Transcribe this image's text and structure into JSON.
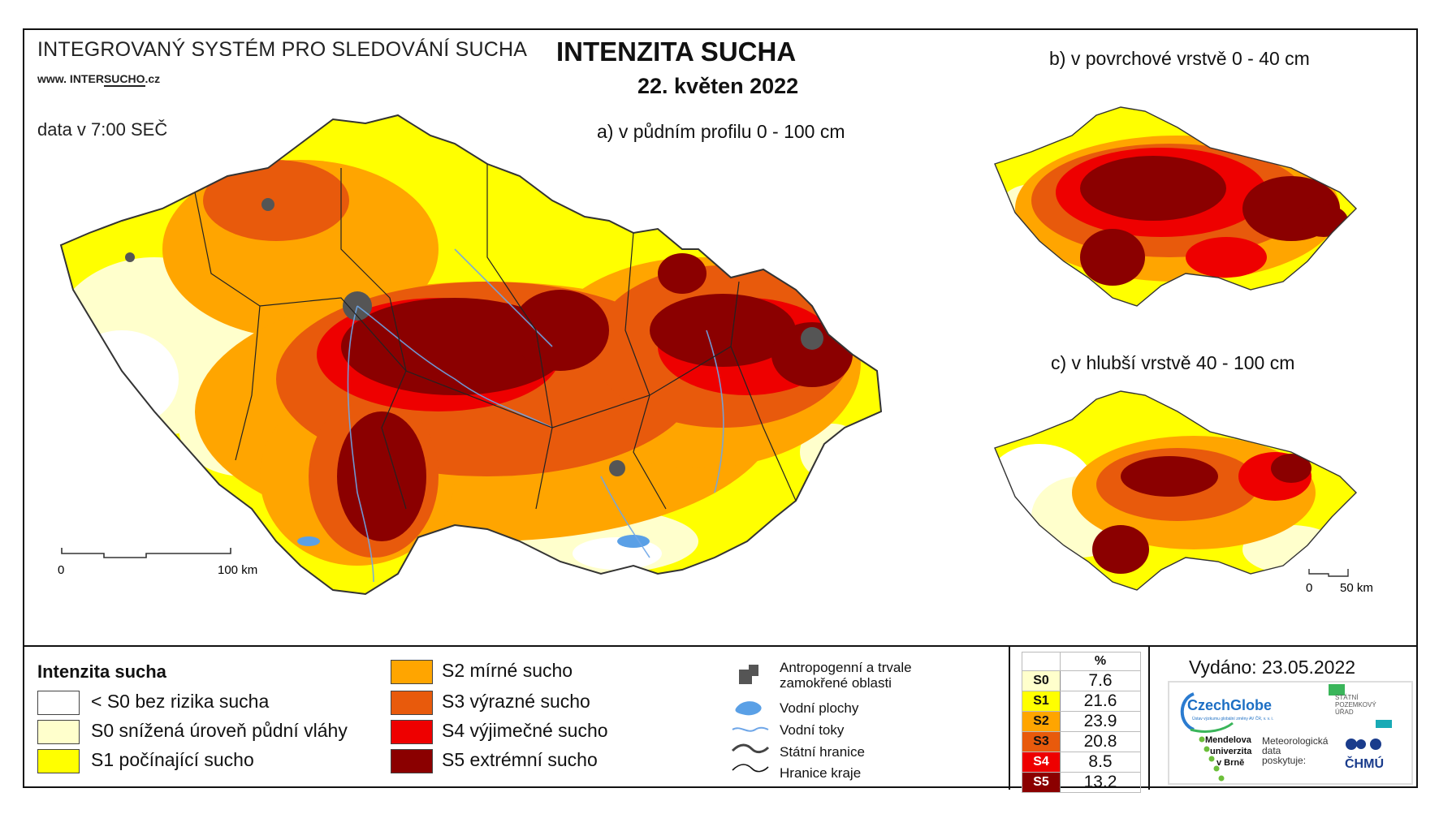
{
  "header": {
    "system_title": "INTEGROVANÝ SYSTÉM PRO SLEDOVÁNÍ SUCHA",
    "website_prefix": "www. INTER",
    "website_underlined": "SUCHO",
    "website_suffix": ".cz",
    "data_time": "data v 7:00 SEČ",
    "main_title": "INTENZITA SUCHA",
    "date": "22. květen 2022"
  },
  "panels": {
    "a_label": "a) v půdním profilu 0 - 100 cm",
    "b_label": "b) v povrchové vrstvě 0 - 40 cm",
    "c_label": "c) v hlubší vrstvě 40 - 100 cm"
  },
  "scale_main": {
    "start": "0",
    "end": "100 km"
  },
  "scale_small": {
    "start": "0",
    "end": "50 km"
  },
  "legend": {
    "title": "Intenzita sucha",
    "classes": [
      {
        "label": "< S0 bez rizika sucha",
        "color": "#ffffff"
      },
      {
        "label": "S0 snížená úroveň půdní vláhy",
        "color": "#ffffcc"
      },
      {
        "label": "S1 počínající sucho",
        "color": "#ffff00"
      },
      {
        "label": "S2 mírné sucho",
        "color": "#ffa500"
      },
      {
        "label": "S3 výrazné sucho",
        "color": "#e85a0c"
      },
      {
        "label": "S4 výjimečné sucho",
        "color": "#ee0000"
      },
      {
        "label": "S5 extrémní sucho",
        "color": "#8b0000"
      }
    ],
    "symbols": {
      "anthropogenic": "Antropogenní a trvale zamokřené oblasti",
      "water_bodies": "Vodní plochy",
      "rivers": "Vodní toky",
      "state_border": "Státní hranice",
      "region_border": "Hranice kraje"
    }
  },
  "percent_table": {
    "header": "%",
    "rows": [
      {
        "cls": "S0",
        "value": "7.6",
        "color": "#ffffcc"
      },
      {
        "cls": "S1",
        "value": "21.6",
        "color": "#ffff00"
      },
      {
        "cls": "S2",
        "value": "23.9",
        "color": "#ffa500"
      },
      {
        "cls": "S3",
        "value": "20.8",
        "color": "#e85a0c"
      },
      {
        "cls": "S4",
        "value": "8.5",
        "color": "#ee0000"
      },
      {
        "cls": "S5",
        "value": "13.2",
        "color": "#8b0000"
      }
    ]
  },
  "issued": "Vydáno: 23.05.2022",
  "logos": {
    "czechglobe": "CzechGlobe",
    "czechglobe_sub": "Ústav výzkumu globální změny AV ČR, v. v. i.",
    "spu": "STÁTNÍ POZEMKOVÝ ÚŘAD",
    "mendel_1": "Mendelova",
    "mendel_2": "univerzita",
    "mendel_3": "v Brně",
    "meteo_1": "Meteorologická",
    "meteo_2": "data",
    "meteo_3": "poskytuje:",
    "chmu": "ČHMÚ"
  }
}
